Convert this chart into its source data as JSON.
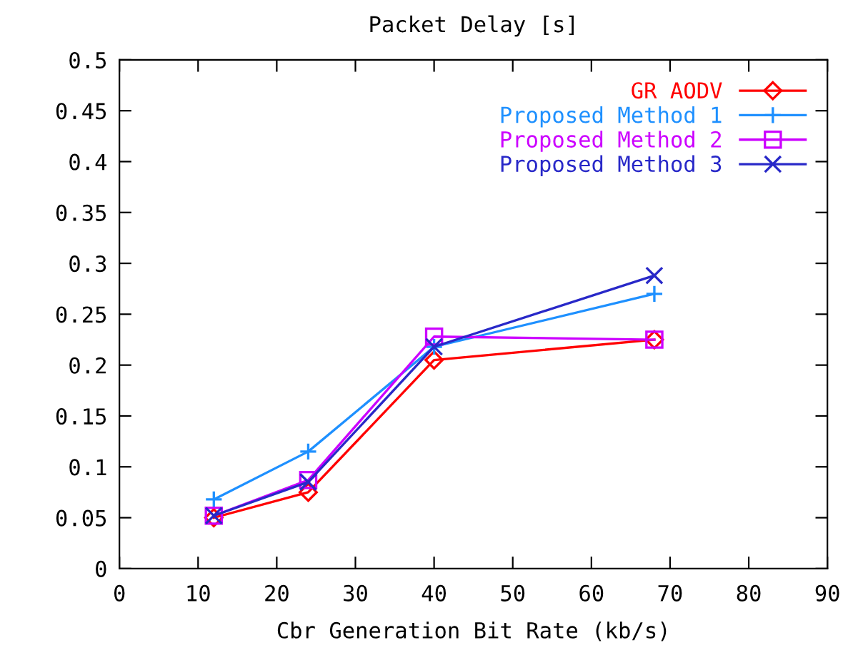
{
  "chart_data": {
    "type": "line",
    "title": "Packet Delay [s]",
    "xlabel": "Cbr Generation Bit Rate (kb/s)",
    "x": [
      12,
      24,
      40,
      68
    ],
    "series": [
      {
        "name": "GR AODV",
        "color": "#ff0000",
        "marker": "diamond",
        "values": [
          0.05,
          0.075,
          0.205,
          0.225
        ]
      },
      {
        "name": "Proposed Method 1",
        "color": "#1e90ff",
        "marker": "plus",
        "values": [
          0.068,
          0.115,
          0.218,
          0.27
        ]
      },
      {
        "name": "Proposed Method 2",
        "color": "#cc00ff",
        "marker": "square",
        "values": [
          0.052,
          0.087,
          0.228,
          0.225
        ]
      },
      {
        "name": "Proposed Method 3",
        "color": "#2828c8",
        "marker": "cross",
        "values": [
          0.052,
          0.085,
          0.218,
          0.288
        ]
      }
    ],
    "xlim": [
      0,
      90
    ],
    "xticks": [
      0,
      10,
      20,
      30,
      40,
      50,
      60,
      70,
      80,
      90
    ],
    "ylim": [
      0,
      0.5
    ],
    "yticks": [
      0,
      0.05,
      0.1,
      0.15,
      0.2,
      0.25,
      0.3,
      0.35,
      0.4,
      0.45,
      0.5
    ],
    "grid": false,
    "legend": "top right",
    "line_style": "solid"
  }
}
